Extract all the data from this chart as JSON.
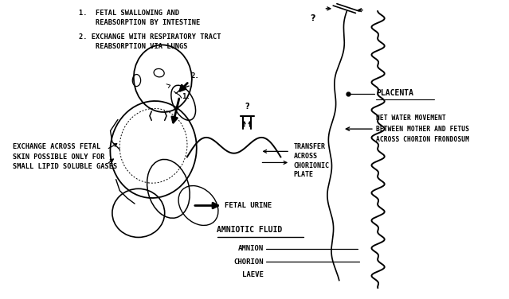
{
  "bg_color": "#ffffff",
  "annotations": {
    "top_left_1": "1.  FETAL SWALLOWING AND\n    REABSORPTION BY INTESTINE",
    "top_left_2": "2. EXCHANGE WITH RESPIRATORY TRACT\n    REABSORPTION VIA LUNGS",
    "left_bottom": "EXCHANGE ACROSS FETAL\nSKIN POSSIBLE ONLY FOR\nSMALL LIPID SOLUBLE GASES",
    "placenta": "PLACENTA",
    "net_water_1": "NET WATER MOVEMENT",
    "net_water_2": "BETWEEN MOTHER AND FETUS",
    "net_water_3": "ACROSS CHORION FRONDOSUM",
    "transfer": "TRANSFER\nACROSS\nCHORIONIC\nPLATE",
    "fetal_urine": "FETAL URINE",
    "amniotic_fluid": "AMNIOTIC FLUID",
    "amnion": "AMNION",
    "chorion": "CHORION",
    "laeve": "LAEVE",
    "q1": "?",
    "q2": "?"
  },
  "layout": {
    "xmax": 13.0,
    "ymax": 8.0
  }
}
